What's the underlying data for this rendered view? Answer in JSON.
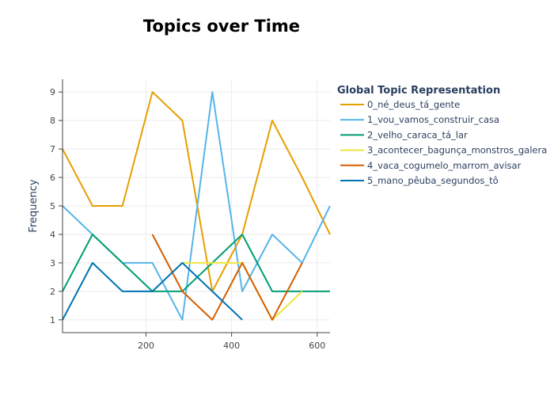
{
  "chart_data": {
    "type": "line",
    "title": "Topics over Time",
    "xlabel": "",
    "ylabel": "Frequency",
    "xlim": [
      5,
      630
    ],
    "ylim": [
      0.55,
      9.45
    ],
    "xticks": [
      200,
      400,
      600
    ],
    "yticks": [
      1,
      2,
      3,
      4,
      5,
      6,
      7,
      8,
      9
    ],
    "grid": true,
    "legend_title": "Global Topic Representation",
    "legend_position": "right",
    "series": [
      {
        "name": "0_né_deus_tá_gente",
        "color": "#E69F00",
        "x": [
          5,
          75,
          145,
          215,
          285,
          355,
          425,
          495,
          565,
          630
        ],
        "y": [
          7,
          5,
          5,
          9,
          8,
          2,
          4,
          8,
          6,
          4
        ]
      },
      {
        "name": "1_vou_vamos_construir_casa",
        "color": "#56B4E9",
        "x": [
          5,
          75,
          145,
          215,
          285,
          355,
          425,
          495,
          565,
          630
        ],
        "y": [
          5,
          4,
          3,
          3,
          1,
          9,
          2,
          4,
          3,
          5
        ]
      },
      {
        "name": "2_velho_caraca_tá_lar",
        "color": "#009E73",
        "x": [
          5,
          75,
          145,
          215,
          285,
          355,
          425,
          495,
          565,
          630
        ],
        "y": [
          2,
          4,
          3,
          2,
          2,
          3,
          4,
          2,
          2,
          2
        ]
      },
      {
        "name": "3_acontecer_bagunça_monstros_galera",
        "color": "#F0E442",
        "x": [
          285,
          355,
          425,
          495,
          565
        ],
        "y": [
          3,
          3,
          3,
          1,
          2
        ]
      },
      {
        "name": "4_vaca_cogumelo_marrom_avisar",
        "color": "#D55E00",
        "x": [
          215,
          285,
          355,
          425,
          495,
          565
        ],
        "y": [
          4,
          2,
          1,
          3,
          1,
          3
        ]
      },
      {
        "name": "5_mano_pêuba_segundos_tô",
        "color": "#0072B2",
        "x": [
          5,
          75,
          145,
          215,
          285,
          355,
          425
        ],
        "y": [
          1,
          3,
          2,
          2,
          3,
          2,
          1
        ]
      }
    ]
  }
}
